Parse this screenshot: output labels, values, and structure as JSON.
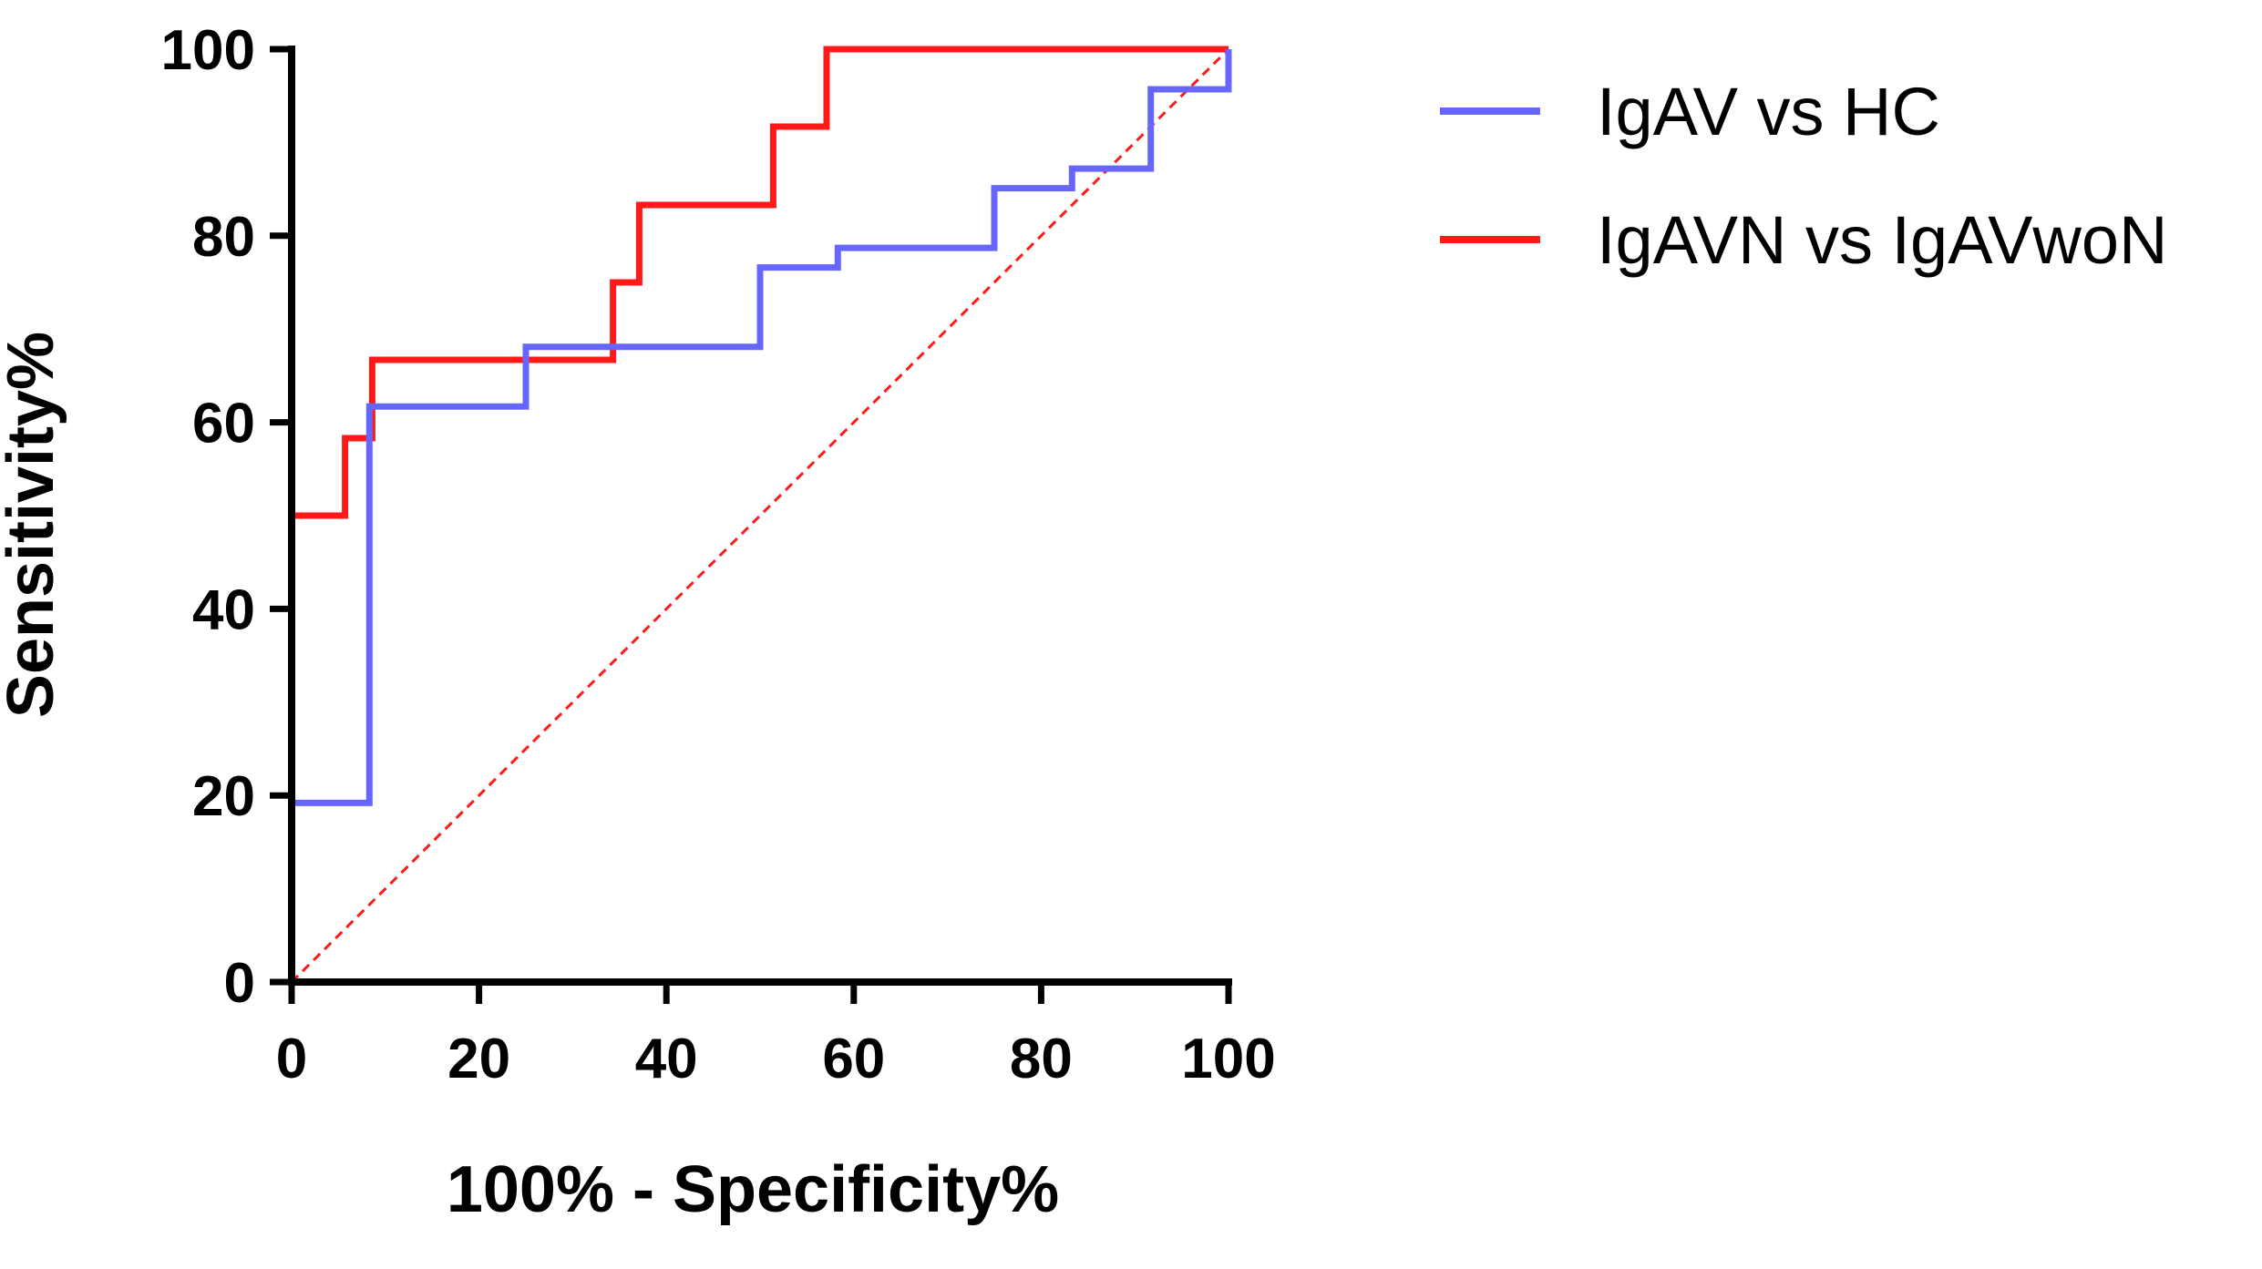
{
  "chart_data": {
    "type": "line",
    "title": "",
    "xlabel": "100% - Specificity%",
    "ylabel": "Sensitivity%",
    "xlim": [
      0,
      100
    ],
    "ylim": [
      0,
      100
    ],
    "xticks": [
      "0",
      "20",
      "40",
      "60",
      "80",
      "100"
    ],
    "yticks": [
      "0",
      "20",
      "40",
      "60",
      "80",
      "100"
    ],
    "legend_position": "top-right, outside plot",
    "grid": false,
    "series": [
      {
        "name": "IgAV vs HC",
        "color": "#6666ff",
        "step": true,
        "points": [
          [
            0,
            0
          ],
          [
            0,
            19.2
          ],
          [
            8.3,
            19.2
          ],
          [
            8.3,
            61.7
          ],
          [
            25,
            61.7
          ],
          [
            25,
            68.1
          ],
          [
            50,
            68.1
          ],
          [
            50,
            76.6
          ],
          [
            58.3,
            76.6
          ],
          [
            58.3,
            78.7
          ],
          [
            75,
            78.7
          ],
          [
            75,
            85.1
          ],
          [
            83.3,
            85.1
          ],
          [
            83.3,
            87.2
          ],
          [
            91.7,
            87.2
          ],
          [
            91.7,
            95.7
          ],
          [
            100,
            95.7
          ],
          [
            100,
            100
          ]
        ]
      },
      {
        "name": "IgAVN vs IgAVwoN",
        "color": "#ff1a1a",
        "step": true,
        "points": [
          [
            0,
            0
          ],
          [
            0,
            50
          ],
          [
            5.7,
            50
          ],
          [
            5.7,
            58.3
          ],
          [
            8.6,
            58.3
          ],
          [
            8.6,
            66.7
          ],
          [
            34.3,
            66.7
          ],
          [
            34.3,
            75
          ],
          [
            37.1,
            75
          ],
          [
            37.1,
            83.3
          ],
          [
            51.4,
            83.3
          ],
          [
            51.4,
            91.7
          ],
          [
            57.1,
            91.7
          ],
          [
            57.1,
            100
          ],
          [
            100,
            100
          ]
        ]
      },
      {
        "name": "reference",
        "color": "#ff1a1a",
        "dashed": true,
        "show_in_legend": false,
        "points": [
          [
            0,
            0
          ],
          [
            100,
            100
          ]
        ]
      }
    ]
  }
}
